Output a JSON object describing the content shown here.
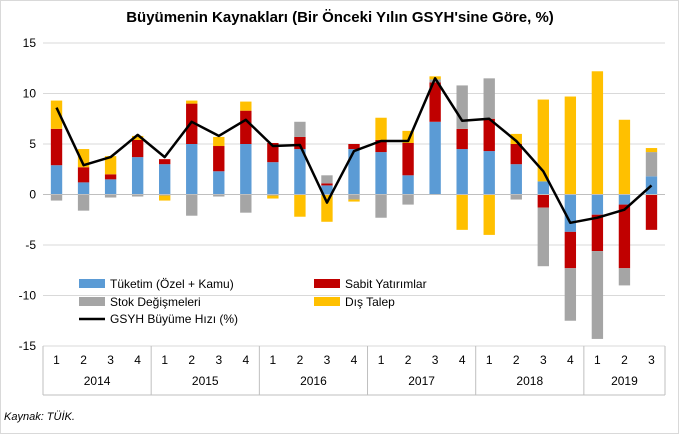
{
  "chart_data": {
    "type": "bar",
    "title": "Büyümenin  Kaynakları  (Bir Önceki Yılın GSYH'sine Göre, %)",
    "source": "Kaynak: TÜİK.",
    "ylim": [
      -15,
      15
    ],
    "yticks": [
      15,
      10,
      5,
      0,
      -5,
      -10,
      -15
    ],
    "grid": true,
    "quarter_labels": [
      "1",
      "2",
      "3",
      "4",
      "1",
      "2",
      "3",
      "4",
      "1",
      "2",
      "3",
      "4",
      "1",
      "2",
      "3",
      "4",
      "1",
      "2",
      "3",
      "4",
      "1",
      "2",
      "3"
    ],
    "years": [
      {
        "label": "2014",
        "count": 4
      },
      {
        "label": "2015",
        "count": 4
      },
      {
        "label": "2016",
        "count": 4
      },
      {
        "label": "2017",
        "count": 4
      },
      {
        "label": "2018",
        "count": 4
      },
      {
        "label": "2019",
        "count": 3
      }
    ],
    "series": [
      {
        "name": "Tüketim (Özel + Kamu)",
        "kind": "bar",
        "color": "#5b9bd5",
        "values": [
          2.9,
          1.2,
          1.5,
          3.7,
          3.0,
          5.0,
          2.3,
          5.0,
          3.2,
          4.5,
          0.9,
          4.5,
          4.2,
          1.9,
          7.2,
          4.5,
          4.3,
          3.0,
          1.3,
          -3.7,
          -2.0,
          -1.0,
          1.8
        ]
      },
      {
        "name": "Sabit Yatırımlar",
        "kind": "bar",
        "color": "#c00000",
        "values": [
          3.6,
          1.5,
          0.5,
          1.7,
          0.5,
          4.0,
          2.5,
          3.3,
          1.9,
          1.2,
          0.2,
          0.5,
          1.2,
          3.2,
          3.9,
          2.0,
          3.2,
          2.0,
          -1.3,
          -3.6,
          -3.6,
          -6.3,
          -3.5
        ]
      },
      {
        "name": "Stok Değişmeleri",
        "kind": "bar",
        "color": "#a5a5a5",
        "values": [
          -0.6,
          -1.6,
          -0.3,
          -0.2,
          -0.1,
          -2.1,
          -0.2,
          -1.8,
          -0.1,
          1.5,
          0.8,
          -0.5,
          -2.3,
          -1.0,
          0.3,
          4.3,
          4.0,
          -0.5,
          -5.8,
          -5.2,
          -8.7,
          -1.7,
          2.4
        ]
      },
      {
        "name": "Dış Talep",
        "kind": "bar",
        "color": "#ffc000",
        "values": [
          2.8,
          1.8,
          1.8,
          0.4,
          -0.5,
          0.3,
          0.9,
          0.9,
          -0.3,
          -2.2,
          -2.7,
          -0.2,
          2.2,
          1.2,
          0.3,
          -3.5,
          -4.0,
          1.0,
          8.1,
          9.7,
          12.2,
          7.4,
          0.4
        ]
      },
      {
        "name": "GSYH Büyüme Hızı (%)",
        "kind": "line",
        "color": "#000000",
        "values": [
          8.6,
          2.9,
          3.7,
          5.9,
          3.7,
          7.2,
          5.8,
          7.4,
          4.8,
          4.9,
          -0.8,
          4.3,
          5.3,
          5.3,
          11.5,
          7.3,
          7.5,
          5.3,
          2.3,
          -2.8,
          -2.3,
          -1.5,
          0.9
        ]
      }
    ],
    "legend": {
      "placement": "lower-left-inside",
      "entries": [
        "Tüketim (Özel + Kamu)",
        "Sabit Yatırımlar",
        "Stok Değişmeleri",
        "Dış Talep",
        "GSYH Büyüme Hızı (%)"
      ]
    }
  }
}
